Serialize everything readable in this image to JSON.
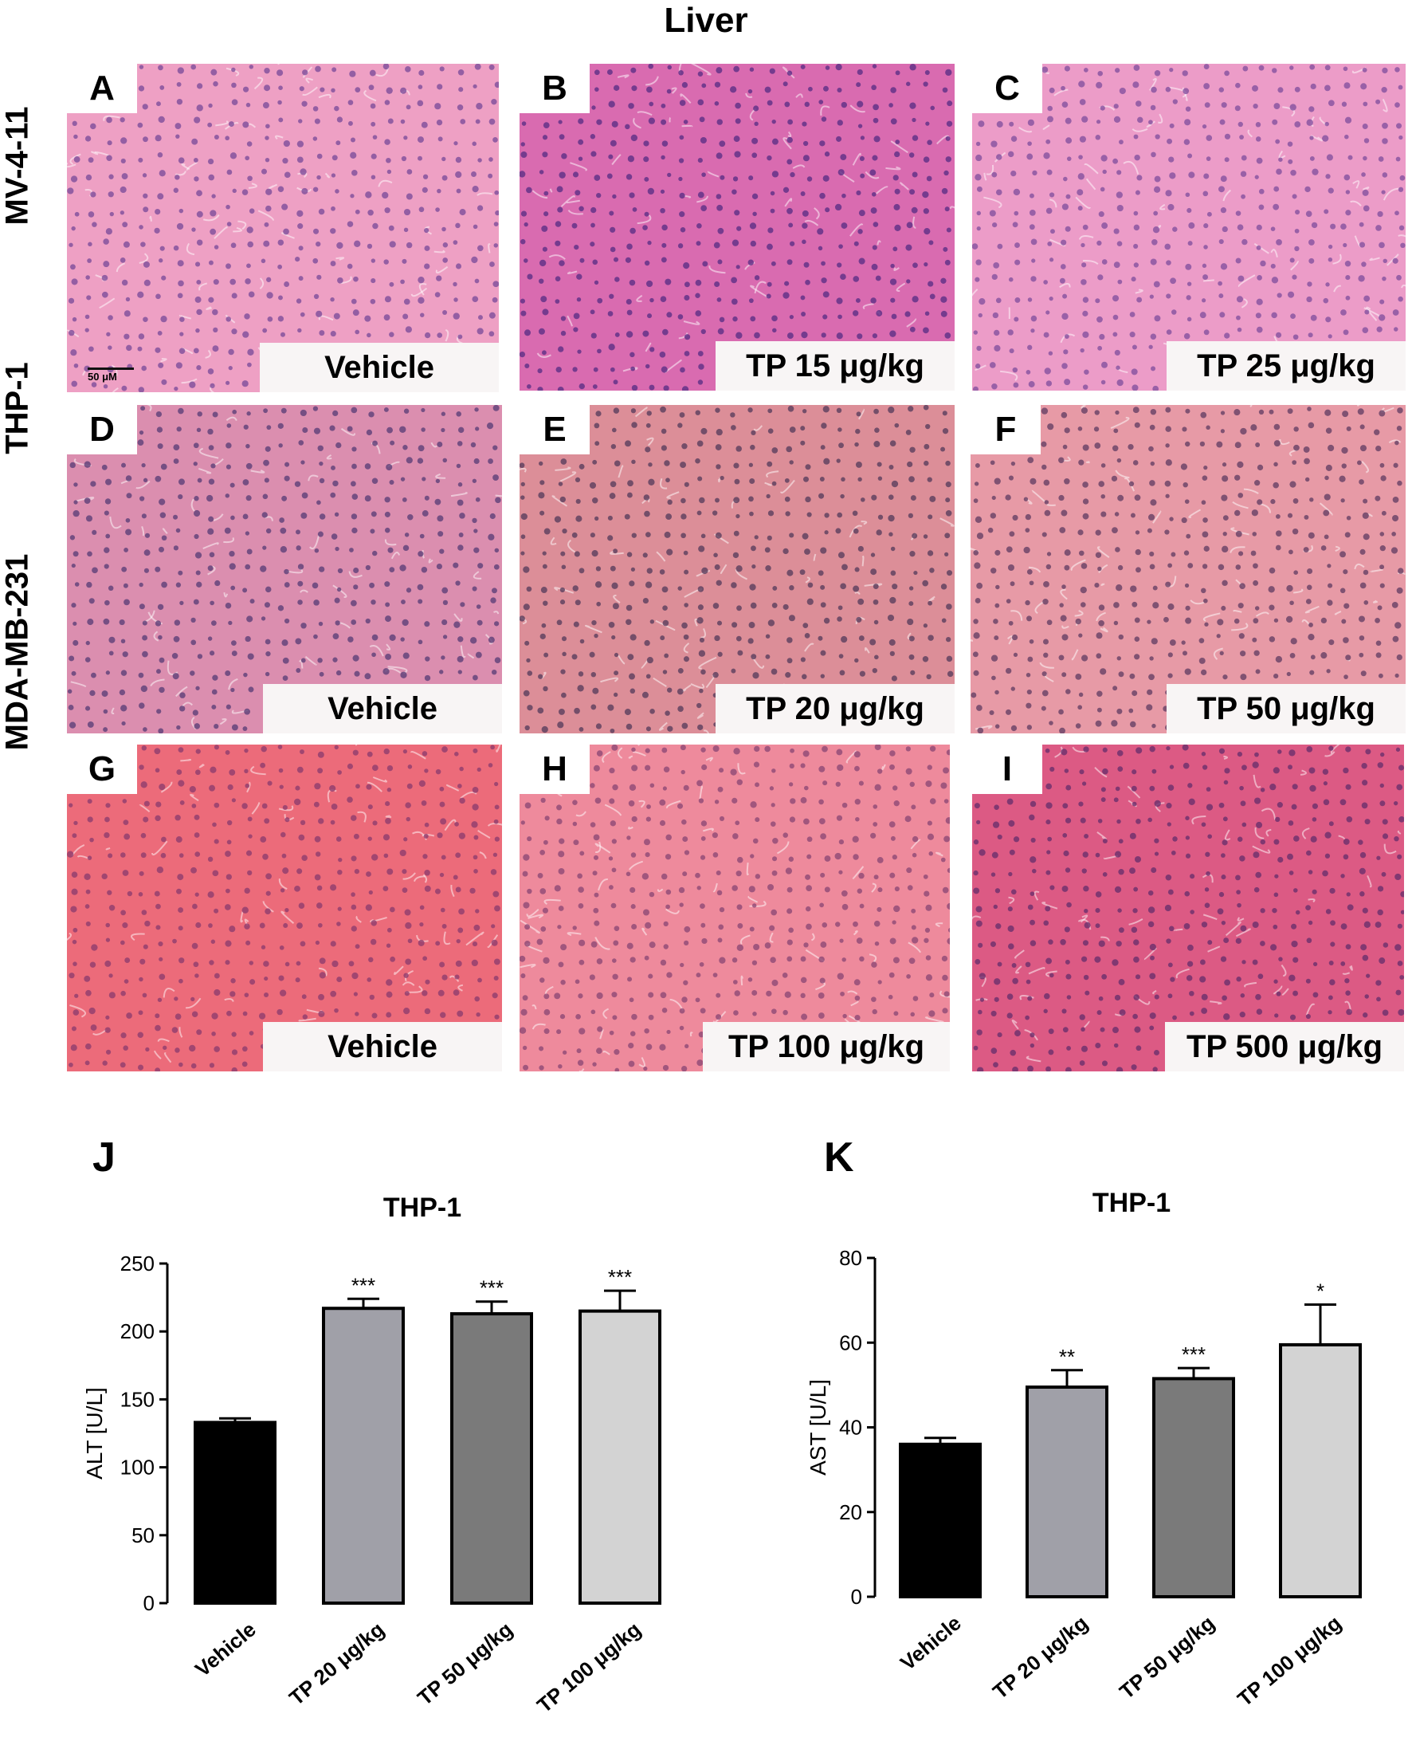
{
  "figure_title": "Liver",
  "row_labels": [
    "MV-4-11",
    "THP-1",
    "MDA-MB-231"
  ],
  "panels": [
    {
      "letter": "A",
      "label": "Vehicle",
      "scale_label": "50 μM",
      "stain_base": "#eea0c4",
      "cell_color": "#7d4d9b"
    },
    {
      "letter": "B",
      "label": "TP 15 μg/kg",
      "stain_base": "#d96bb0",
      "cell_color": "#5b2f86"
    },
    {
      "letter": "C",
      "label": "TP 25 μg/kg",
      "stain_base": "#ec9cc8",
      "cell_color": "#84519f"
    },
    {
      "letter": "D",
      "label": "Vehicle",
      "stain_base": "#db8eaf",
      "cell_color": "#5d4078"
    },
    {
      "letter": "E",
      "label": "TP 20 μg/kg",
      "stain_base": "#dc8e98",
      "cell_color": "#5a3e5e"
    },
    {
      "letter": "F",
      "label": "TP 50 μg/kg",
      "stain_base": "#e79aa6",
      "cell_color": "#664065"
    },
    {
      "letter": "G",
      "label": "Vehicle",
      "stain_base": "#ec6b7a",
      "cell_color": "#8e3d6e"
    },
    {
      "letter": "H",
      "label": "TP 100 μg/kg",
      "stain_base": "#ee8a9c",
      "cell_color": "#8d4876"
    },
    {
      "letter": "I",
      "label": "TP 500 μg/kg",
      "stain_base": "#dc5a84",
      "cell_color": "#6a2f6d"
    }
  ],
  "chart_data": [
    {
      "letter": "J",
      "type": "bar",
      "title": "THP-1",
      "xlabel": "",
      "ylabel": "ALT [U/L]",
      "ylim": [
        0,
        250
      ],
      "yticks": [
        "0",
        "50",
        "100",
        "150",
        "200",
        "250"
      ],
      "categories": [
        "Vehicle",
        "TP 20 μg/kg",
        "TP 50 μg/kg",
        "TP 100 μg/kg"
      ],
      "values": [
        133,
        217,
        213,
        215
      ],
      "errors": [
        3,
        7,
        9,
        15
      ],
      "significance": [
        "",
        "***",
        "***",
        "***"
      ],
      "bar_colors": [
        "#000000",
        "#a0a0a8",
        "#7a7a7a",
        "#d3d3d3"
      ]
    },
    {
      "letter": "K",
      "type": "bar",
      "title": "THP-1",
      "xlabel": "",
      "ylabel": "AST [U/L]",
      "ylim": [
        0,
        80
      ],
      "yticks": [
        "0",
        "20",
        "40",
        "60",
        "80"
      ],
      "categories": [
        "Vehicle",
        "TP 20 μg/kg",
        "TP 50 μg/kg",
        "TP 100 μg/kg"
      ],
      "values": [
        36,
        49.5,
        51.5,
        59.5
      ],
      "errors": [
        1.5,
        4,
        2.5,
        9.5
      ],
      "significance": [
        "",
        "**",
        "***",
        "*"
      ],
      "bar_colors": [
        "#000000",
        "#a0a0a8",
        "#7a7a7a",
        "#d3d3d3"
      ]
    }
  ]
}
